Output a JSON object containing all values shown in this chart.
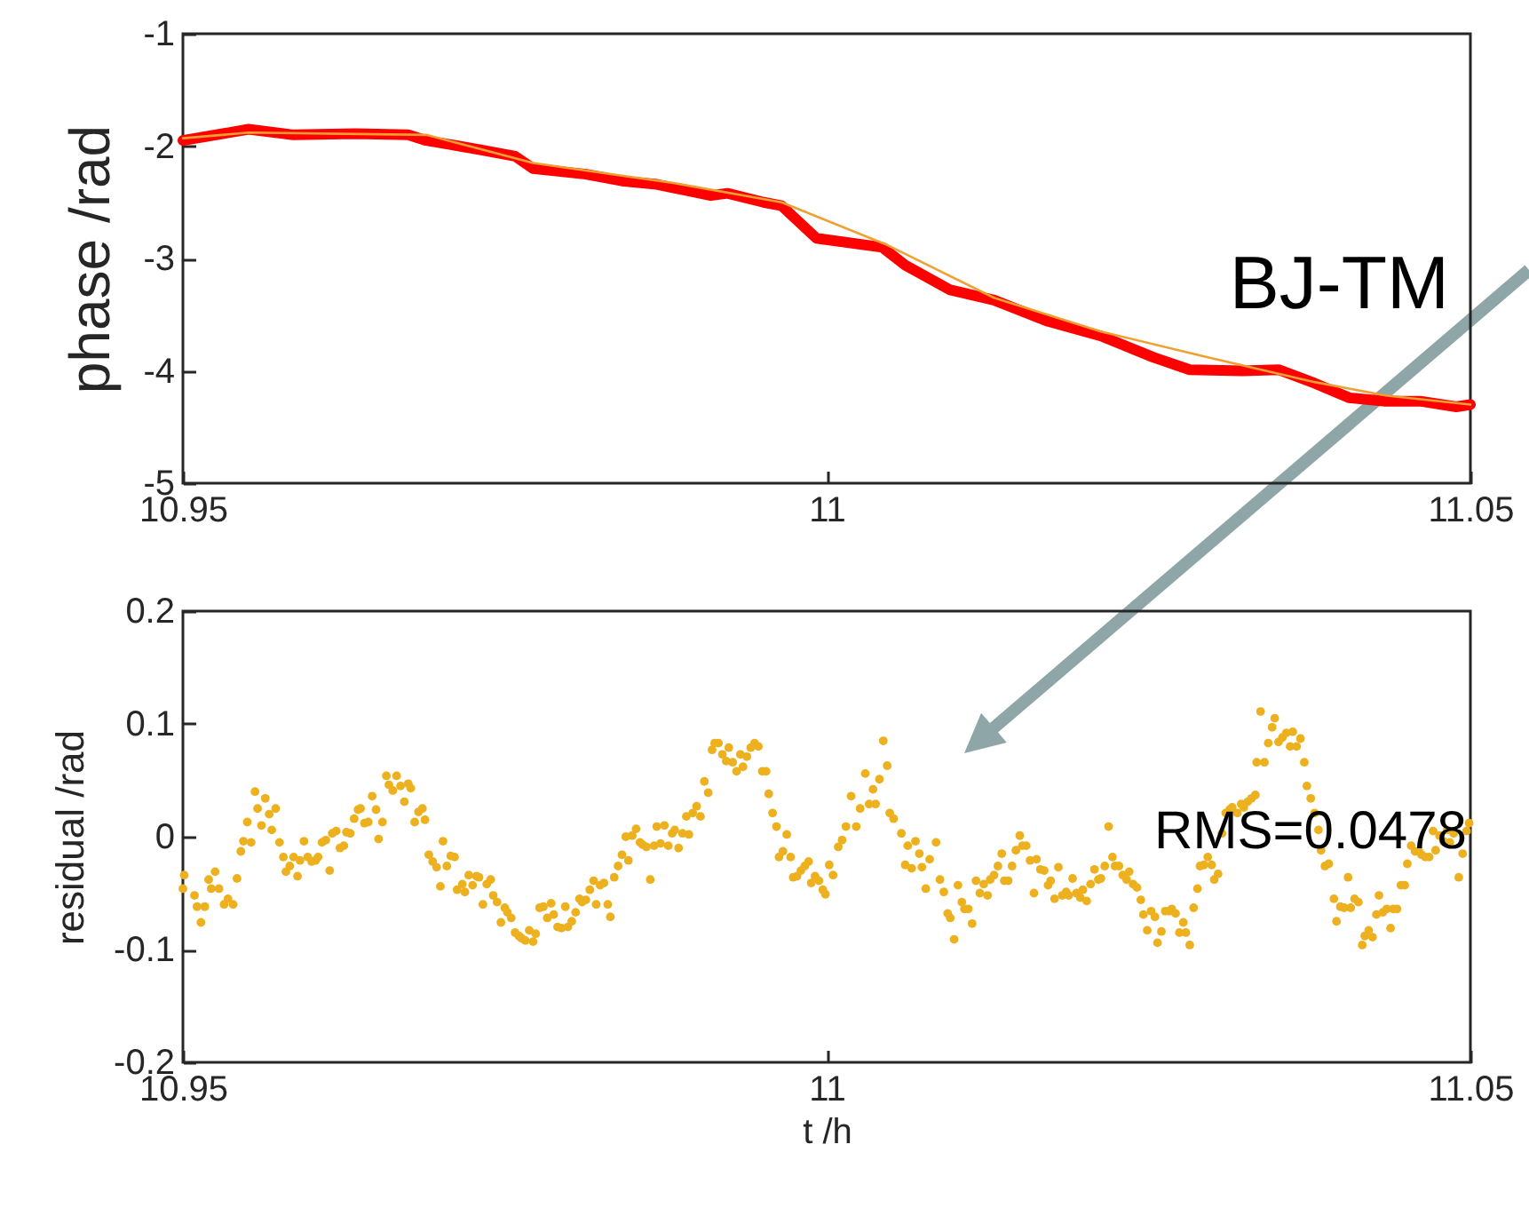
{
  "chart_data": [
    {
      "type": "line",
      "ylabel": "phase /rad",
      "annotations": [
        "BJ-TM"
      ],
      "xlim": [
        10.95,
        11.05
      ],
      "xticks": [
        10.95,
        11,
        11.05
      ],
      "ylim": [
        -5,
        -1
      ],
      "yticks": [
        -5,
        -4,
        -3,
        -2,
        -1
      ],
      "grid": false,
      "line_style": "solid",
      "series": [
        {
          "color": "#ff0000",
          "x": [
            10.95,
            10.9551,
            10.9586,
            10.9634,
            10.9675,
            10.9689,
            10.973,
            10.9758,
            10.9772,
            10.9813,
            10.9841,
            10.9868,
            10.991,
            10.9923,
            10.9951,
            10.9965,
            10.9992,
            11.0043,
            11.0061,
            11.0096,
            11.013,
            11.0172,
            11.0213,
            11.0254,
            11.0282,
            11.0323,
            11.0351,
            11.0379,
            11.0406,
            11.0434,
            11.0461,
            11.0489,
            11.05
          ],
          "values": [
            -1.95,
            -1.85,
            -1.9,
            -1.89,
            -1.9,
            -1.95,
            -2.03,
            -2.09,
            -2.2,
            -2.25,
            -2.31,
            -2.34,
            -2.44,
            -2.42,
            -2.5,
            -2.53,
            -2.82,
            -2.9,
            -3.06,
            -3.28,
            -3.37,
            -3.56,
            -3.69,
            -3.88,
            -3.99,
            -4.0,
            -3.99,
            -4.11,
            -4.24,
            -4.27,
            -4.27,
            -4.32,
            -4.3
          ]
        },
        {
          "color": "#f0a030",
          "x": [
            10.95,
            10.9551,
            10.9689,
            10.9772,
            10.9882,
            10.9965,
            11.0047,
            11.013,
            11.0213,
            11.0296,
            11.0379,
            11.0434,
            11.05
          ],
          "values": [
            -1.93,
            -1.88,
            -1.9,
            -2.15,
            -2.33,
            -2.5,
            -2.88,
            -3.35,
            -3.65,
            -3.88,
            -4.1,
            -4.22,
            -4.3
          ]
        }
      ]
    },
    {
      "type": "scatter",
      "xlabel": "t /h",
      "ylabel": "residual /rad",
      "annotations": [
        "RMS=0.0478"
      ],
      "xlim": [
        10.95,
        11.05
      ],
      "xticks": [
        10.95,
        11,
        11.05
      ],
      "ylim": [
        -0.2,
        0.2
      ],
      "yticks": [
        -0.2,
        -0.1,
        0,
        0.1,
        0.2
      ],
      "grid": false,
      "marker": "circle",
      "color": "#edb120",
      "x": [
        10.95,
        10.9501,
        10.9509,
        10.9511,
        10.9514,
        10.9517,
        10.952,
        10.9522,
        10.9525,
        10.9528,
        10.9532,
        10.9535,
        10.9539,
        10.9542,
        10.9545,
        10.9547,
        10.955,
        10.9553,
        10.9556,
        10.9558,
        10.9561,
        10.9564,
        10.9567,
        10.9569,
        10.9572,
        10.9575,
        10.9578,
        10.958,
        10.9583,
        10.9586,
        10.9589,
        10.9591,
        10.9594,
        10.9597,
        10.96,
        10.9603,
        10.9605,
        10.9608,
        10.9611,
        10.9614,
        10.9616,
        10.9619,
        10.9622,
        10.9625,
        10.9627,
        10.963,
        10.9633,
        10.9636,
        10.9638,
        10.9641,
        10.9644,
        10.9647,
        10.965,
        10.9652,
        10.9655,
        10.9658,
        10.966,
        10.9663,
        10.9666,
        10.9669,
        10.9672,
        10.9675,
        10.9677,
        10.968,
        10.9683,
        10.9686,
        10.9688,
        10.9691,
        10.9694,
        10.9697,
        10.97,
        10.9702,
        10.9705,
        10.9708,
        10.9711,
        10.9713,
        10.9717,
        10.9719,
        10.9722,
        10.9725,
        10.9728,
        10.973,
        10.9733,
        10.9736,
        10.9739,
        10.9741,
        10.9744,
        10.9747,
        10.975,
        10.9752,
        10.9755,
        10.9758,
        10.9761,
        10.9763,
        10.9766,
        10.9769,
        10.9772,
        10.9774,
        10.9777,
        10.978,
        10.9783,
        10.9786,
        10.9788,
        10.9791,
        10.9794,
        10.9797,
        10.9799,
        10.9802,
        10.9805,
        10.9808,
        10.981,
        10.9813,
        10.9816,
        10.9819,
        10.9821,
        10.9824,
        10.9827,
        10.983,
        10.9832,
        10.9835,
        10.9838,
        10.9841,
        10.9844,
        10.9846,
        10.9849,
        10.9852,
        10.9855,
        10.9857,
        10.986,
        10.9863,
        10.9866,
        10.9868,
        10.9871,
        10.9874,
        10.9877,
        10.988,
        10.9882,
        10.9885,
        10.9888,
        10.9891,
        10.9893,
        10.9896,
        10.9899,
        10.9902,
        10.9905,
        10.9908,
        10.9911,
        10.9913,
        10.9916,
        10.9919,
        10.9922,
        10.9924,
        10.9927,
        10.993,
        10.9933,
        10.9935,
        10.9938,
        10.9941,
        10.9944,
        10.9947,
        10.995,
        10.9953,
        10.9955,
        10.9958,
        10.9961,
        10.9963,
        10.9966,
        10.9969,
        10.9972,
        10.9974,
        10.9977,
        10.998,
        10.9983,
        10.9986,
        10.9988,
        10.9991,
        10.9994,
        10.9997,
        10.9999,
        11.0002,
        11.0005,
        11.0009,
        11.0012,
        11.0015,
        11.0019,
        11.0023,
        11.0026,
        11.003,
        11.0033,
        11.0036,
        11.0038,
        11.0041,
        11.0044,
        11.0047,
        11.0049,
        11.0052,
        11.0058,
        11.0061,
        11.0063,
        11.0066,
        11.0069,
        11.0072,
        11.0074,
        11.0077,
        11.008,
        11.0085,
        11.0088,
        11.0091,
        11.0094,
        11.0096,
        11.0099,
        11.0102,
        11.0105,
        11.0107,
        11.011,
        11.0113,
        11.0116,
        11.0119,
        11.0122,
        11.0125,
        11.0127,
        11.013,
        11.0133,
        11.0136,
        11.0138,
        11.0141,
        11.0144,
        11.0147,
        11.015,
        11.0152,
        11.0155,
        11.0158,
        11.0161,
        11.0163,
        11.0166,
        11.0169,
        11.0172,
        11.0174,
        11.0177,
        11.018,
        11.0183,
        11.0186,
        11.0188,
        11.0191,
        11.0194,
        11.0197,
        11.0199,
        11.0202,
        11.0205,
        11.0208,
        11.0211,
        11.0213,
        11.0216,
        11.0219,
        11.0222,
        11.0224,
        11.0227,
        11.023,
        11.0233,
        11.0235,
        11.0238,
        11.0241,
        11.0244,
        11.0246,
        11.0249,
        11.0252,
        11.0255,
        11.0257,
        11.026,
        11.0263,
        11.0266,
        11.0268,
        11.0271,
        11.0274,
        11.0277,
        11.0279,
        11.0282,
        11.0285,
        11.0288,
        11.029,
        11.0293,
        11.0296,
        11.0299,
        11.0301,
        11.0304,
        11.0307,
        11.031,
        11.0313,
        11.0315,
        11.0319,
        11.0322,
        11.0324,
        11.0327,
        11.033,
        11.0333,
        11.0334,
        11.0337,
        11.034,
        11.0343,
        11.0346,
        11.0348,
        11.0351,
        11.0354,
        11.0357,
        11.036,
        11.0362,
        11.0365,
        11.0368,
        11.0371,
        11.0373,
        11.0376,
        11.0379,
        11.0382,
        11.0384,
        11.0387,
        11.039,
        11.0394,
        11.0396,
        11.0399,
        11.0402,
        11.0405,
        11.0407,
        11.041,
        11.0413,
        11.0416,
        11.0418,
        11.0421,
        11.0424,
        11.0427,
        11.0429,
        11.0432,
        11.0435,
        11.0438,
        11.044,
        11.0443,
        11.0446,
        11.0449,
        11.0451,
        11.0454,
        11.0457,
        11.046,
        11.0462,
        11.0465,
        11.0468,
        11.0471,
        11.0473,
        11.0476,
        11.0479,
        11.0482,
        11.0484,
        11.0487,
        11.0491,
        11.0494,
        11.0497,
        11.0499
      ],
      "values": [
        -0.046,
        -0.034,
        -0.052,
        -0.062,
        -0.076,
        -0.062,
        -0.038,
        -0.046,
        -0.031,
        -0.046,
        -0.06,
        -0.055,
        -0.06,
        -0.037,
        -0.013,
        -0.004,
        0.013,
        -0.005,
        0.04,
        0.025,
        0.01,
        0.034,
        0.02,
        0.006,
        0.025,
        -0.005,
        -0.018,
        -0.031,
        -0.026,
        -0.018,
        -0.035,
        -0.021,
        -0.004,
        -0.018,
        -0.022,
        -0.021,
        -0.018,
        -0.005,
        -0.003,
        -0.03,
        0.003,
        0.005,
        -0.01,
        -0.008,
        0.004,
        0.003,
        0.016,
        0.024,
        0.025,
        0.012,
        0.013,
        0.036,
        0.024,
        -0.002,
        0.013,
        0.054,
        0.046,
        0.041,
        0.054,
        0.045,
        0.031,
        0.047,
        0.043,
        0.013,
        0.022,
        0.025,
        0.015,
        -0.016,
        -0.022,
        -0.027,
        -0.044,
        -0.004,
        -0.026,
        -0.017,
        -0.018,
        -0.047,
        -0.042,
        -0.049,
        -0.034,
        -0.043,
        -0.035,
        -0.036,
        -0.06,
        -0.042,
        -0.038,
        -0.052,
        -0.058,
        -0.076,
        -0.063,
        -0.067,
        -0.072,
        -0.085,
        -0.088,
        -0.09,
        -0.092,
        -0.083,
        -0.093,
        -0.086,
        -0.063,
        -0.062,
        -0.072,
        -0.059,
        -0.069,
        -0.08,
        -0.081,
        -0.062,
        -0.08,
        -0.075,
        -0.067,
        -0.055,
        -0.058,
        -0.056,
        -0.047,
        -0.039,
        -0.06,
        -0.043,
        -0.041,
        -0.06,
        -0.071,
        -0.036,
        -0.026,
        -0.016,
        0.0,
        -0.021,
        0.001,
        0.007,
        -0.005,
        -0.007,
        -0.009,
        -0.038,
        -0.008,
        0.009,
        -0.006,
        0.01,
        -0.008,
        0.003,
        0.006,
        -0.01,
        0.003,
        0.018,
        0.002,
        0.021,
        0.027,
        0.018,
        0.049,
        0.039,
        0.077,
        0.083,
        0.083,
        0.073,
        0.067,
        0.079,
        0.066,
        0.058,
        0.073,
        0.062,
        0.071,
        0.079,
        0.083,
        0.08,
        0.058,
        0.058,
        0.038,
        0.021,
        0.009,
        -0.018,
        -0.013,
        0.002,
        -0.018,
        -0.036,
        -0.035,
        -0.03,
        -0.026,
        -0.022,
        -0.041,
        -0.035,
        -0.039,
        -0.047,
        -0.051,
        -0.025,
        -0.034,
        -0.009,
        -0.003,
        0.009,
        0.036,
        0.009,
        0.025,
        0.056,
        0.029,
        0.042,
        0.029,
        0.051,
        0.085,
        0.063,
        0.021,
        0.016,
        0.003,
        -0.025,
        -0.008,
        -0.028,
        -0.004,
        -0.015,
        -0.027,
        -0.046,
        -0.02,
        -0.005,
        -0.038,
        -0.049,
        -0.068,
        -0.072,
        -0.091,
        -0.043,
        -0.058,
        -0.064,
        -0.064,
        -0.077,
        -0.039,
        -0.05,
        -0.042,
        -0.052,
        -0.038,
        -0.034,
        -0.026,
        -0.015,
        -0.039,
        -0.039,
        -0.026,
        -0.012,
        0.001,
        -0.008,
        -0.008,
        -0.021,
        -0.05,
        -0.02,
        -0.029,
        -0.03,
        -0.043,
        -0.039,
        -0.055,
        -0.027,
        -0.052,
        -0.049,
        -0.052,
        -0.037,
        -0.05,
        -0.054,
        -0.047,
        -0.057,
        -0.042,
        -0.029,
        -0.038,
        -0.037,
        -0.026,
        0.009,
        -0.018,
        -0.026,
        -0.026,
        -0.034,
        -0.038,
        -0.031,
        -0.042,
        -0.045,
        -0.056,
        -0.069,
        -0.083,
        -0.066,
        -0.071,
        -0.094,
        -0.084,
        -0.066,
        -0.066,
        -0.064,
        -0.068,
        -0.085,
        -0.076,
        -0.085,
        -0.096,
        -0.063,
        -0.046,
        -0.026,
        -0.025,
        -0.018,
        -0.025,
        -0.038,
        -0.033,
        0.003,
        0.021,
        0.024,
        0.026,
        0.021,
        0.029,
        0.026,
        0.031,
        0.034,
        0.037,
        0.066,
        0.111,
        0.066,
        0.083,
        0.097,
        0.105,
        0.084,
        0.088,
        0.092,
        0.08,
        0.093,
        0.08,
        0.087,
        0.066,
        0.045,
        0.034,
        0.021,
        0.006,
        -0.012,
        -0.026,
        -0.024,
        -0.055,
        -0.075,
        -0.062,
        -0.063,
        -0.036,
        -0.063,
        -0.055,
        -0.058,
        -0.096,
        -0.088,
        -0.083,
        -0.089,
        -0.069,
        -0.052,
        -0.067,
        -0.064,
        -0.081,
        -0.064,
        -0.064,
        -0.043,
        -0.043,
        -0.024,
        -0.008,
        -0.013,
        -0.013,
        -0.016,
        -0.018,
        -0.018,
        0.005,
        -0.012,
        0.001,
        -0.004,
        0.006,
        -0.005,
        0.003,
        -0.036,
        -0.015,
        0.005,
        0.012
      ]
    }
  ]
}
